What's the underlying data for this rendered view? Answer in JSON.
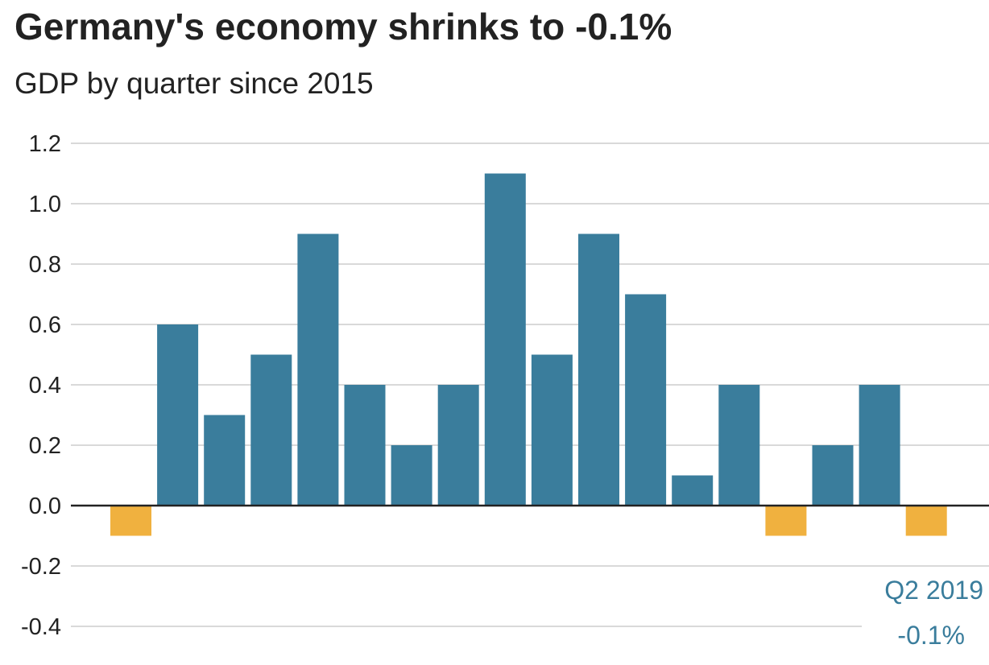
{
  "chart_data": {
    "type": "bar",
    "title": "Germany's economy shrinks to -0.1%",
    "subtitle": "GDP by quarter since 2015",
    "xlabel": "",
    "ylabel": "",
    "ylim": [
      -0.4,
      1.2
    ],
    "yticks": [
      1.2,
      1.0,
      0.8,
      0.6,
      0.4,
      0.2,
      0.0,
      -0.2,
      -0.4
    ],
    "ytick_labels": [
      "1.2",
      "1.0",
      "0.8",
      "0.6",
      "0.4",
      "0.2",
      "0.0",
      "-0.2",
      "-0.4"
    ],
    "grid": true,
    "values": [
      -0.1,
      0.6,
      0.3,
      0.5,
      0.9,
      0.4,
      0.2,
      0.4,
      1.1,
      0.5,
      0.9,
      0.7,
      0.1,
      0.4,
      -0.1,
      0.2,
      0.4,
      -0.1
    ],
    "colors": {
      "positive": "#3a7d9c",
      "negative": "#f0b13f",
      "grid": "#d9d9d9",
      "zero_line": "#222222"
    },
    "annotation": {
      "line1": "Q2 2019",
      "line2": "-0.1%"
    }
  }
}
